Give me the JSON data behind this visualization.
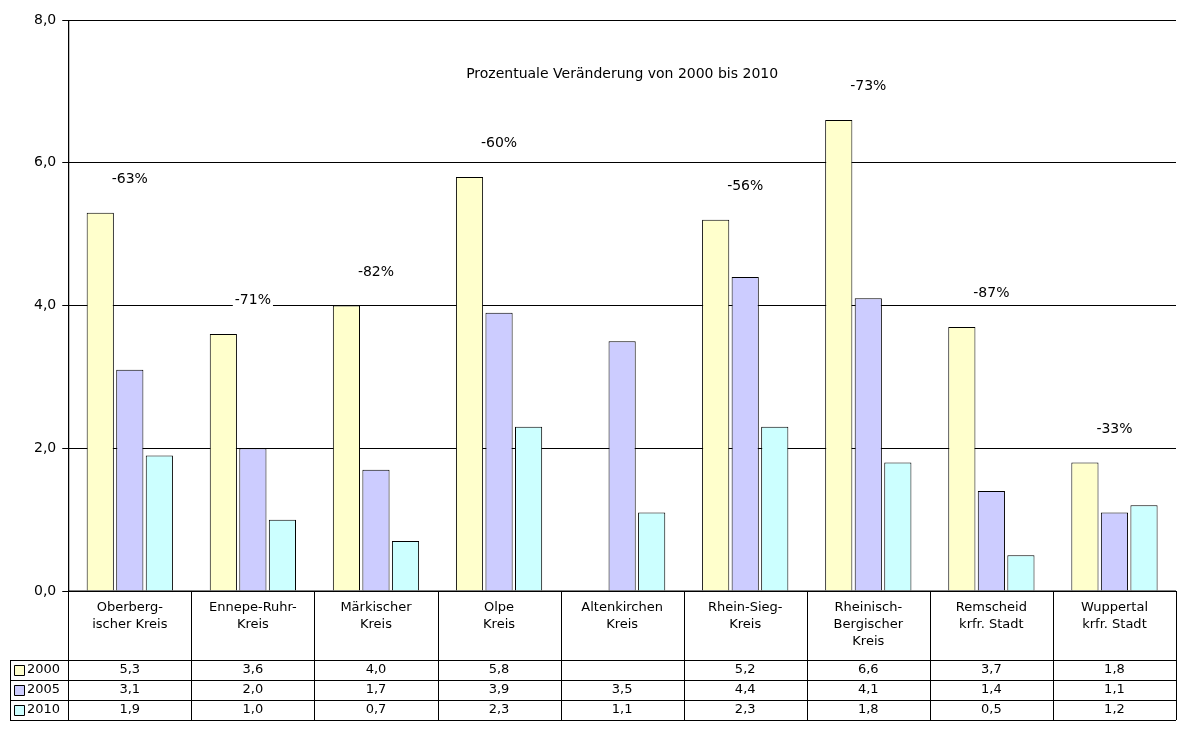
{
  "chart_data": {
    "type": "bar",
    "categories": [
      "Oberberg-\nischer Kreis",
      "Ennepe-Ruhr-\nKreis",
      "Märkischer\nKreis",
      "Olpe\nKreis",
      "Altenkirchen\nKreis",
      "Rhein-Sieg-\nKreis",
      "Rheinisch-\nBergischer\nKreis",
      "Remscheid\nkrfr. Stadt",
      "Wuppertal\nkrfr. Stadt"
    ],
    "series": [
      {
        "name": "2000",
        "color": "#ffffcc",
        "values": [
          5.3,
          3.6,
          4.0,
          5.8,
          null,
          5.2,
          6.6,
          3.7,
          1.8
        ],
        "value_labels": [
          "5,3",
          "3,6",
          "4,0",
          "5,8",
          null,
          "5,2",
          "6,6",
          "3,7",
          "1,8"
        ]
      },
      {
        "name": "2005",
        "color": "#ccccff",
        "values": [
          3.1,
          2.0,
          1.7,
          3.9,
          3.5,
          4.4,
          4.1,
          1.4,
          1.1
        ],
        "value_labels": [
          "3,1",
          "2,0",
          "1,7",
          "3,9",
          "3,5",
          "4,4",
          "4,1",
          "1,4",
          "1,1"
        ]
      },
      {
        "name": "2010",
        "color": "#ccffff",
        "values": [
          1.9,
          1.0,
          0.7,
          2.3,
          1.1,
          2.3,
          1.8,
          0.5,
          1.2
        ],
        "value_labels": [
          "1,9",
          "1,0",
          "0,7",
          "2,3",
          "1,1",
          "2,3",
          "1,8",
          "0,5",
          "1,2"
        ]
      }
    ],
    "ylim": [
      0,
      8
    ],
    "yticks": [
      {
        "value": 0,
        "label": "0,0"
      },
      {
        "value": 2,
        "label": "2,0"
      },
      {
        "value": 4,
        "label": "4,0"
      },
      {
        "value": 6,
        "label": "6,0"
      },
      {
        "value": 8,
        "label": "8,0"
      }
    ],
    "grid": "y",
    "legend": "bottom",
    "annotations": [
      "Prozentuale Veränderung von 2000 bis 2010",
      "-63%",
      "-71%",
      "-82%",
      "-60%",
      "-56%",
      "-73%",
      "-87%",
      "-33%"
    ]
  }
}
